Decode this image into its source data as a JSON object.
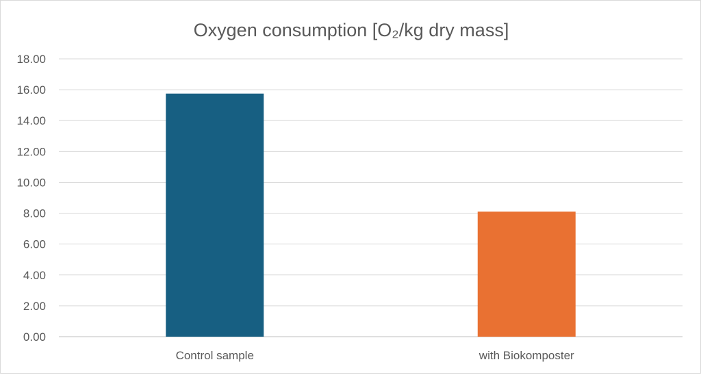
{
  "chart_data": {
    "type": "bar",
    "title": "Oxygen consumption [O₂/kg dry mass]",
    "xlabel": "",
    "ylabel": "",
    "categories": [
      "Control sample",
      "with Biokomposter"
    ],
    "values": [
      15.75,
      8.1
    ],
    "colors": [
      "#175F82",
      "#E97132"
    ],
    "ylim": [
      0,
      18
    ],
    "yticks": [
      "0.00",
      "2.00",
      "4.00",
      "6.00",
      "8.00",
      "10.00",
      "12.00",
      "14.00",
      "16.00",
      "18.00"
    ],
    "grid": true,
    "legend": "none"
  }
}
